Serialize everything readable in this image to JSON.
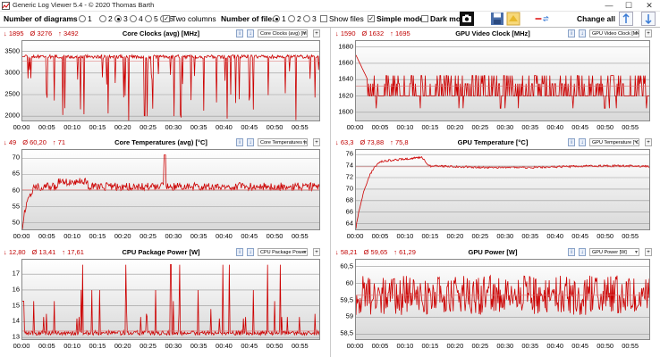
{
  "window": {
    "title": "Generic Log Viewer 5.4 - © 2020 Thomas Barth",
    "min": "—",
    "max": "☐",
    "close": "✕"
  },
  "toolbar": {
    "num_diagrams_label": "Number of diagrams",
    "diag_options": [
      "1",
      "2",
      "3",
      "4",
      "5",
      "6"
    ],
    "diag_selected": "3",
    "two_columns_label": "Two columns",
    "two_columns_checked": true,
    "num_files_label": "Number of files",
    "file_options": [
      "1",
      "2",
      "3"
    ],
    "file_selected": "1",
    "show_files_label": "Show files",
    "show_files_checked": false,
    "simple_mode_label": "Simple mode",
    "simple_mode_checked": true,
    "dark_mode_label": "Dark mod",
    "dark_mode_checked": false,
    "change_all_label": "Change all",
    "icons": [
      "camera-icon",
      "save-icon",
      "folder-icon",
      "line-swap-icon",
      "arrow-up-icon",
      "arrow-down-icon"
    ]
  },
  "panels": [
    {
      "id": "core-clocks",
      "title": "Core Clocks (avg) [MHz]",
      "select": "Core Clocks (avg) [MHz]",
      "min": "↓ 1895",
      "avg": "Ø 3276",
      "max": "↑ 3492",
      "chart_data": {
        "type": "line",
        "ylim": [
          1900,
          3700
        ],
        "yticks": [
          "3500",
          "3000",
          "2500",
          "2000"
        ],
        "ytick_values": [
          3500,
          3000,
          2500,
          2000
        ],
        "xticks": [
          "00:00",
          "00:05",
          "00:10",
          "00:15",
          "00:20",
          "00:25",
          "00:30",
          "00:35",
          "00:40",
          "00:45",
          "00:50",
          "00:55"
        ],
        "x_range_min": [
          0,
          59
        ],
        "pattern": "spiky_high",
        "base": 3380,
        "noise": 40,
        "spikes_down": [
          3000,
          2500,
          2100,
          1950,
          2400,
          2800
        ],
        "avg": 3276,
        "min": 1895,
        "max": 3492,
        "color": "#cc0000"
      }
    },
    {
      "id": "gpu-video-clock",
      "title": "GPU Video Clock [MHz]",
      "select": "GPU Video Clock [MHz]",
      "min": "↓ 1590",
      "avg": "Ø 1632",
      "max": "↑ 1695",
      "chart_data": {
        "type": "line",
        "ylim": [
          1590,
          1685
        ],
        "yticks": [
          "1680",
          "1660",
          "1640",
          "1620",
          "1600"
        ],
        "ytick_values": [
          1680,
          1660,
          1640,
          1620,
          1600
        ],
        "xticks": [
          "00:00",
          "00:05",
          "00:10",
          "00:15",
          "00:20",
          "00:25",
          "00:30",
          "00:35",
          "00:40",
          "00:45",
          "00:50",
          "00:55"
        ],
        "x_range_min": [
          0,
          59
        ],
        "pattern": "step",
        "levels": [
          1620,
          1635,
          1645
        ],
        "start": 1670,
        "avg": 1632,
        "min": 1590,
        "max": 1695,
        "color": "#cc0000"
      }
    },
    {
      "id": "core-temps",
      "title": "Core Temperatures (avg) [°C]",
      "select": "Core Temperatures (avg) [°C]",
      "min": "↓ 49",
      "avg": "Ø 60,20",
      "max": "↑ 71",
      "chart_data": {
        "type": "line",
        "ylim": [
          48,
          72
        ],
        "yticks": [
          "70",
          "65",
          "60",
          "55",
          "50"
        ],
        "ytick_values": [
          70,
          65,
          60,
          55,
          50
        ],
        "xticks": [
          "00:00",
          "00:05",
          "00:10",
          "00:15",
          "00:20",
          "00:25",
          "00:30",
          "00:35",
          "00:40",
          "00:45",
          "00:50",
          "00:55"
        ],
        "x_range_min": [
          0,
          59
        ],
        "pattern": "warmup",
        "start": 49,
        "plateau": 60.2,
        "noise": 1.0,
        "avg": 60.2,
        "min": 49,
        "max": 71,
        "color": "#cc0000"
      }
    },
    {
      "id": "gpu-temp",
      "title": "GPU Temperature [°C]",
      "select": "GPU Temperature [°C]",
      "min": "↓ 63,3",
      "avg": "Ø 73,88",
      "max": "↑ 75,8",
      "chart_data": {
        "type": "line",
        "ylim": [
          63,
          76.5
        ],
        "yticks": [
          "76",
          "74",
          "72",
          "70",
          "68",
          "66",
          "64"
        ],
        "ytick_values": [
          76,
          74,
          72,
          70,
          68,
          66,
          64
        ],
        "xticks": [
          "00:00",
          "00:05",
          "00:10",
          "00:15",
          "00:20",
          "00:25",
          "00:30",
          "00:35",
          "00:40",
          "00:45",
          "00:50",
          "00:55"
        ],
        "x_range_min": [
          0,
          59
        ],
        "pattern": "gpu_warm",
        "start": 63.3,
        "peak": 75.8,
        "plateau": 73.9,
        "avg": 73.88,
        "min": 63.3,
        "max": 75.8,
        "color": "#cc0000"
      }
    },
    {
      "id": "cpu-power",
      "title": "CPU Package Power [W]",
      "select": "CPU Package Power [W]",
      "min": "↓ 12,80",
      "avg": "Ø 13,41",
      "max": "↑ 17,61",
      "chart_data": {
        "type": "line",
        "ylim": [
          12.9,
          17.8
        ],
        "yticks": [
          "17",
          "16",
          "15",
          "14",
          "13"
        ],
        "ytick_values": [
          17,
          16,
          15,
          14,
          13
        ],
        "xticks": [
          "00:00",
          "00:05",
          "00:10",
          "00:15",
          "00:20",
          "00:25",
          "00:30",
          "00:35",
          "00:40",
          "00:45",
          "00:50",
          "00:55"
        ],
        "x_range_min": [
          0,
          59
        ],
        "pattern": "spiky_low",
        "base": 13.3,
        "noise": 0.15,
        "spikes_up": [
          14.5,
          15.3,
          14.2,
          16.0,
          17.6,
          14.8,
          14.3
        ],
        "avg": 13.41,
        "min": 12.8,
        "max": 17.61,
        "color": "#cc0000"
      }
    },
    {
      "id": "gpu-power",
      "title": "GPU Power [W]",
      "select": "GPU Power [W]",
      "min": "↓ 58,21",
      "avg": "Ø 59,65",
      "max": "↑ 61,29",
      "chart_data": {
        "type": "line",
        "ylim": [
          58.35,
          60.65
        ],
        "yticks": [
          "60,5",
          "60",
          "59,5",
          "59",
          "58,5"
        ],
        "ytick_values": [
          60.5,
          60,
          59.5,
          59,
          58.5
        ],
        "xticks": [
          "00:00",
          "00:05",
          "00:10",
          "00:15",
          "00:20",
          "00:25",
          "00:30",
          "00:35",
          "00:40",
          "00:45",
          "00:50",
          "00:55"
        ],
        "x_range_min": [
          0,
          59
        ],
        "pattern": "noisy",
        "base": 59.65,
        "noise": 0.45,
        "avg": 59.65,
        "min": 58.21,
        "max": 61.29,
        "color": "#cc0000"
      }
    }
  ]
}
